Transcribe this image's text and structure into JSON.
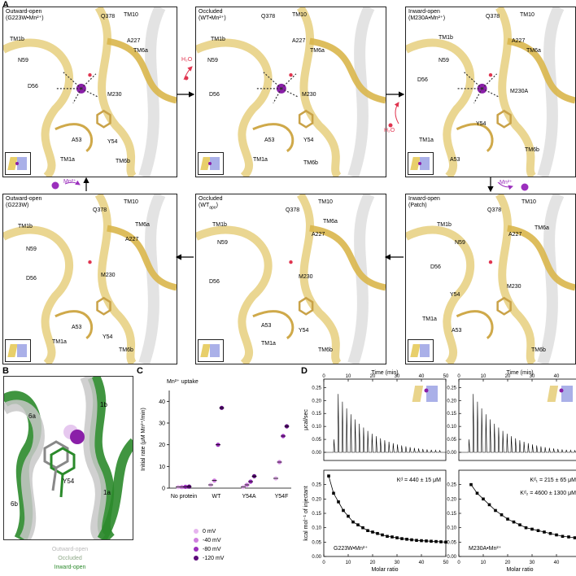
{
  "panel_letters": {
    "a": "A",
    "b": "B",
    "c": "C",
    "d": "D"
  },
  "states": [
    {
      "id": "s1",
      "title": "Outward-open\n(G223W•Mn²⁺)",
      "labels": [
        "Q378",
        "TM10",
        "TM1b",
        "A227",
        "N59",
        "TM6a",
        "D56",
        "M230",
        "A53",
        "Y54",
        "TM1a",
        "TM6b"
      ]
    },
    {
      "id": "s2",
      "title": "Occluded\n(WT•Mn²⁺)",
      "labels": [
        "Q378",
        "TM10",
        "TM1b",
        "A227",
        "N59",
        "TM6a",
        "D56",
        "M230",
        "A53",
        "Y54",
        "TM1a",
        "TM6b"
      ]
    },
    {
      "id": "s3",
      "title": "Inward-open\n(M230A•Mn²⁺)",
      "labels": [
        "Q378",
        "TM10",
        "TM1b",
        "A227",
        "TM6a",
        "N59",
        "D56",
        "M230A",
        "Y54",
        "TM1a",
        "A53",
        "TM6b"
      ]
    },
    {
      "id": "s4",
      "title": "Outward-open\n(G223W)",
      "labels": [
        "TM10",
        "Q378",
        "TM6a",
        "TM1b",
        "A227",
        "N59",
        "D56",
        "M230",
        "A53",
        "Y54",
        "TM1a",
        "TM6b"
      ]
    },
    {
      "id": "s5",
      "title": "Occluded\n(WT",
      "title_sub": "apo",
      "title_end": ")",
      "labels": [
        "TM10",
        "Q378",
        "TM6a",
        "TM1b",
        "A227",
        "N59",
        "D56",
        "M230",
        "A53",
        "Y54",
        "TM1a",
        "TM6b"
      ]
    },
    {
      "id": "s6",
      "title": "Inward-open\n(Patch)",
      "labels": [
        "TM10",
        "Q378",
        "TM6a",
        "TM1b",
        "A227",
        "N59",
        "D56",
        "M230",
        "Y54",
        "TM1a",
        "A53",
        "TM6b"
      ]
    }
  ],
  "transitions": {
    "h2o_out": "H₂O",
    "h2o_in": "H₂O",
    "mn_out": "Mn²⁺",
    "mn_in": "Mn²⁺"
  },
  "panel_b": {
    "labels": [
      "6a",
      "1b",
      "Y54",
      "6b",
      "1a"
    ],
    "legend": [
      {
        "text": "Outward-open",
        "color": "#b9b9b9"
      },
      {
        "text": "Occluded",
        "color": "#8ea888"
      },
      {
        "text": "Inward-open",
        "color": "#2b8a2b"
      }
    ]
  },
  "panel_c": {
    "title": "Mn²⁺ uptake",
    "ylabel": "Initial rate (μM Mn²⁺/min)",
    "yticks": [
      "0",
      "10",
      "20",
      "30",
      "40"
    ],
    "legend": [
      {
        "text": "0 mV",
        "color": "#e6b4ef"
      },
      {
        "text": "-40 mV",
        "color": "#cf7fdf"
      },
      {
        "text": "-80 mV",
        "color": "#9b2fbd"
      },
      {
        "text": "-120 mV",
        "color": "#5b0a7a"
      }
    ]
  },
  "chart_data": [
    {
      "type": "scatter",
      "title": "Mn²⁺ uptake",
      "xlabel": "",
      "ylabel": "Initial rate (μM Mn²⁺/min)",
      "categories": [
        "No protein",
        "WT",
        "Y54A",
        "Y54F"
      ],
      "ylim": [
        0,
        45
      ],
      "series": [
        {
          "name": "0 mV",
          "values": [
            0.5,
            1.5,
            0.5,
            4.5
          ]
        },
        {
          "name": "-40 mV",
          "values": [
            0.5,
            3.5,
            1.5,
            12
          ]
        },
        {
          "name": "-80 mV",
          "values": [
            0.6,
            20,
            3,
            24
          ]
        },
        {
          "name": "-120 mV",
          "values": [
            0.7,
            37,
            5.5,
            28.5
          ]
        }
      ]
    },
    {
      "type": "line",
      "title": "",
      "xlabel": "Molar ratio",
      "ylabel": "kcal mol⁻¹ of injectant",
      "top_xlabel": "Time (min)",
      "top_ylabel": "μcal/sec",
      "annotation": "G223W•Mn²⁺",
      "kd": "Kᵈ = 440 ± 15 μM",
      "x": [
        2,
        4,
        6,
        8,
        10,
        12,
        14,
        16,
        18,
        20,
        22,
        24,
        26,
        28,
        30,
        32,
        34,
        36,
        38,
        40,
        42,
        44,
        46,
        48,
        50
      ],
      "y": [
        0.28,
        0.22,
        0.19,
        0.16,
        0.14,
        0.12,
        0.11,
        0.1,
        0.09,
        0.085,
        0.08,
        0.075,
        0.07,
        0.068,
        0.065,
        0.062,
        0.06,
        0.058,
        0.056,
        0.055,
        0.054,
        0.053,
        0.052,
        0.051,
        0.05
      ],
      "xlim": [
        0,
        50
      ],
      "ylim": [
        0,
        0.3
      ],
      "top_xlim": [
        0,
        50
      ],
      "top_ylim": [
        0,
        0.27
      ]
    },
    {
      "type": "line",
      "title": "",
      "xlabel": "Molar ratio",
      "ylabel": "",
      "top_xlabel": "Time (min)",
      "annotation": "M230A•Mn²⁺",
      "kd1": "Kᵈ₁ = 215 ± 65 μM",
      "kd2": "Kᵈ₂ = 4600 ± 1300 μM",
      "x": [
        5,
        7.5,
        10,
        12.5,
        15,
        17.5,
        20,
        22.5,
        25,
        27.5,
        30,
        32.5,
        35,
        37.5,
        40,
        42.5,
        45,
        47.5,
        50
      ],
      "y": [
        0.25,
        0.22,
        0.2,
        0.18,
        0.16,
        0.145,
        0.13,
        0.12,
        0.11,
        0.1,
        0.095,
        0.09,
        0.085,
        0.08,
        0.075,
        0.07,
        0.068,
        0.065,
        0.062
      ],
      "xlim": [
        0,
        50
      ],
      "ylim": [
        0,
        0.3
      ]
    }
  ]
}
